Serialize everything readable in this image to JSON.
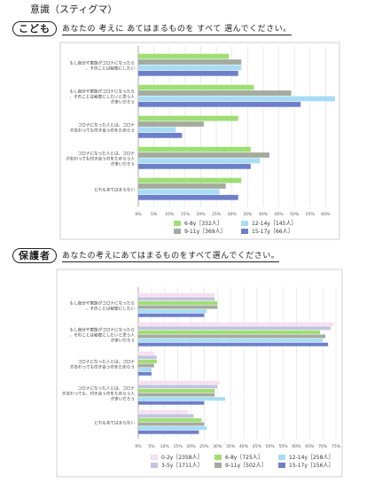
{
  "page": {
    "title": "意識（スティグマ）"
  },
  "sections": [
    {
      "badge": "こども",
      "question": "あなたの 考えに あてはまるものを すべて 選んでください。"
    },
    {
      "badge": "保護者",
      "question": "あなたの考えにあてはまるものをすべて選んでください。"
    }
  ],
  "chart_data": [
    {
      "type": "bar",
      "orientation": "horizontal",
      "categories": [
        [
          "もし自分や家族がコロナになったら",
          "、そのことは秘密にしたい"
        ],
        [
          "もし自分や家族がコロナになったら",
          "、そのことは秘密にしたいと思う人",
          "が多いだろう"
        ],
        [
          "コロナになった人とは、コロナ",
          "がおわっても付き合うのをためらう"
        ],
        [
          "コロナになった人とは、コロナ",
          "がおわっても付き合うのをためらう人",
          "が多いだろう"
        ],
        [
          "どれもあてはまらない"
        ]
      ],
      "series": [
        {
          "name": "6-8y［332人］",
          "color": "#9ede74",
          "values": [
            29,
            37,
            32,
            36,
            33
          ]
        },
        {
          "name": "9-11y［369人］",
          "color": "#a4ab9e",
          "values": [
            33,
            49,
            21,
            42,
            28
          ]
        },
        {
          "name": "12-14y［145人］",
          "color": "#a8dcf4",
          "values": [
            33,
            63,
            12,
            39,
            26
          ]
        },
        {
          "name": "15-17y［66人］",
          "color": "#6d7fc9",
          "values": [
            32,
            52,
            14,
            36,
            32
          ]
        }
      ],
      "xlim": [
        0,
        65
      ],
      "xticks": [
        "0%",
        "5%",
        "10%",
        "15%",
        "20%",
        "25%",
        "30%",
        "35%",
        "40%",
        "45%",
        "50%",
        "55%",
        "60%"
      ]
    },
    {
      "type": "bar",
      "orientation": "horizontal",
      "categories": [
        [
          "もし自分や家族がコロナになったら",
          "、そのことは秘密にしたい"
        ],
        [
          "もし自分や家族がコロナになったら",
          "、そのことは秘密にしたいと思う人",
          "が多いだろう"
        ],
        [
          "コロナになった人とは、コロナ",
          "がおわっても付き合うのをためらう"
        ],
        [
          "コロナになった人とは、コロナ",
          "がおわっても、付き合うのをためらう人",
          "が多いだろう"
        ],
        [
          "どれもあてはまらない"
        ]
      ],
      "series": [
        {
          "name": "0-2y［2358人］",
          "color": "#f5dff0",
          "values": [
            29,
            74,
            6,
            31,
            19
          ]
        },
        {
          "name": "3-5y［1711人］",
          "color": "#c2c4df",
          "values": [
            29,
            73,
            7,
            30,
            21
          ]
        },
        {
          "name": "6-8y［725人］",
          "color": "#9ede74",
          "values": [
            30,
            69,
            7,
            29,
            24
          ]
        },
        {
          "name": "9-11y［502人］",
          "color": "#a4ab9e",
          "values": [
            30,
            71,
            6,
            29,
            25
          ]
        },
        {
          "name": "12-14y［258人］",
          "color": "#a8dcf4",
          "values": [
            26,
            70,
            5,
            33,
            26
          ]
        },
        {
          "name": "15-17y［156人］",
          "color": "#6d7fc9",
          "values": [
            25,
            72,
            5,
            25,
            23
          ]
        }
      ],
      "xlim": [
        0,
        77
      ],
      "xticks": [
        "0%",
        "5%",
        "10%",
        "15%",
        "20%",
        "25%",
        "30%",
        "35%",
        "40%",
        "45%",
        "50%",
        "55%",
        "60%",
        "65%",
        "70%",
        "75%"
      ]
    }
  ]
}
